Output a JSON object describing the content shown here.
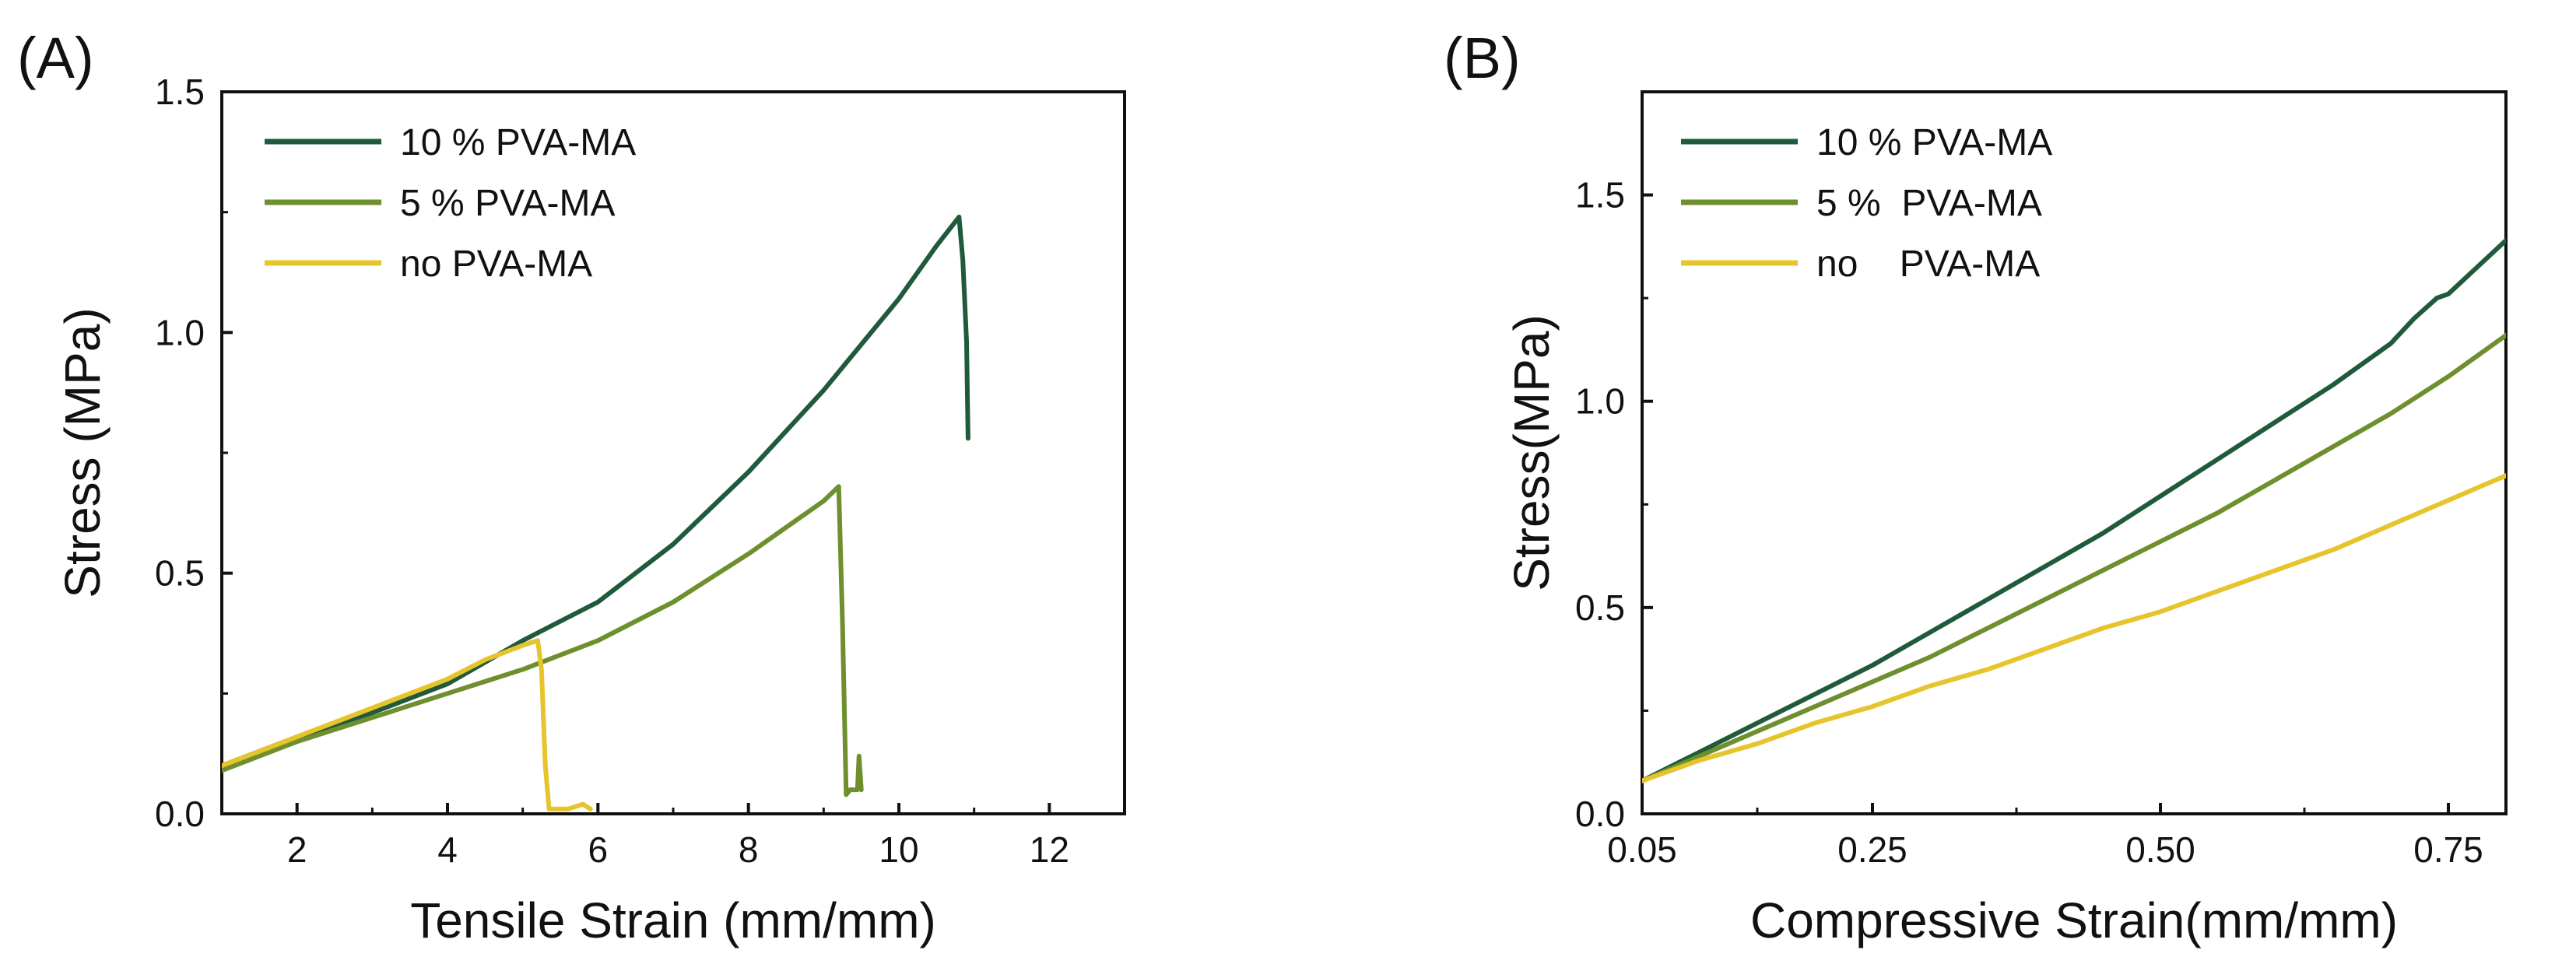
{
  "chart_data": [
    {
      "panel": "(A)",
      "type": "line",
      "xlabel": "Tensile Strain (mm/mm)",
      "ylabel": "Stress (MPa)",
      "xlim": [
        1,
        13
      ],
      "ylim": [
        0,
        1.5
      ],
      "xticks": [
        2,
        4,
        6,
        8,
        10,
        12
      ],
      "yticks": [
        0.0,
        0.5,
        1.0,
        1.5
      ],
      "xtick_labels": [
        "2",
        "4",
        "6",
        "8",
        "10",
        "12"
      ],
      "ytick_labels": [
        "0.0",
        "0.5",
        "1.0",
        "1.5"
      ],
      "legend_position": "top-left",
      "series": [
        {
          "name": "10 % PVA-MA",
          "color": "#1f5a3a",
          "x": [
            1.0,
            2.0,
            3.0,
            4.0,
            5.0,
            5.5,
            6.0,
            7.0,
            8.0,
            9.0,
            10.0,
            10.5,
            10.8,
            10.85,
            10.9,
            10.92
          ],
          "y": [
            0.1,
            0.16,
            0.21,
            0.27,
            0.36,
            0.4,
            0.44,
            0.56,
            0.71,
            0.88,
            1.07,
            1.18,
            1.24,
            1.15,
            0.98,
            0.78
          ]
        },
        {
          "name": "5 % PVA-MA",
          "color": "#6e8f2e",
          "x": [
            1.0,
            2.0,
            3.0,
            4.0,
            5.0,
            6.0,
            7.0,
            8.0,
            9.0,
            9.2,
            9.25,
            9.3,
            9.35,
            9.45,
            9.47,
            9.5
          ],
          "y": [
            0.09,
            0.15,
            0.2,
            0.25,
            0.3,
            0.36,
            0.44,
            0.54,
            0.65,
            0.68,
            0.4,
            0.04,
            0.05,
            0.05,
            0.12,
            0.05
          ]
        },
        {
          "name": "no PVA-MA",
          "color": "#e6c42c",
          "x": [
            1.0,
            2.0,
            3.0,
            4.0,
            4.5,
            5.0,
            5.2,
            5.25,
            5.3,
            5.35,
            5.6,
            5.8,
            5.9
          ],
          "y": [
            0.1,
            0.16,
            0.22,
            0.28,
            0.32,
            0.35,
            0.36,
            0.3,
            0.1,
            0.01,
            0.01,
            0.02,
            0.01
          ]
        }
      ]
    },
    {
      "panel": "(B)",
      "type": "line",
      "xlabel": "Compressive Strain(mm/mm)",
      "ylabel": "Stress(MPa)",
      "xlim": [
        0.05,
        0.8
      ],
      "ylim": [
        0,
        1.75
      ],
      "xticks": [
        0.05,
        0.25,
        0.5,
        0.75
      ],
      "yticks": [
        0.0,
        0.5,
        1.0,
        1.5
      ],
      "xtick_labels": [
        "0.05",
        "0.25",
        "0.50",
        "0.75"
      ],
      "ytick_labels": [
        "0.0",
        "0.5",
        "1.0",
        "1.5"
      ],
      "legend_position": "top-left",
      "series": [
        {
          "name": "10 % PVA-MA",
          "color": "#1f5a3a",
          "x": [
            0.05,
            0.1,
            0.15,
            0.2,
            0.25,
            0.3,
            0.35,
            0.4,
            0.45,
            0.5,
            0.55,
            0.6,
            0.65,
            0.7,
            0.72,
            0.74,
            0.75,
            0.8
          ],
          "y": [
            0.08,
            0.15,
            0.22,
            0.29,
            0.36,
            0.44,
            0.52,
            0.6,
            0.68,
            0.77,
            0.86,
            0.95,
            1.04,
            1.14,
            1.2,
            1.25,
            1.26,
            1.39
          ]
        },
        {
          "name": "5 %  PVA-MA",
          "color": "#6e8f2e",
          "x": [
            0.05,
            0.1,
            0.15,
            0.2,
            0.25,
            0.3,
            0.35,
            0.4,
            0.45,
            0.5,
            0.55,
            0.6,
            0.65,
            0.7,
            0.75,
            0.8
          ],
          "y": [
            0.08,
            0.14,
            0.2,
            0.26,
            0.32,
            0.38,
            0.45,
            0.52,
            0.59,
            0.66,
            0.73,
            0.81,
            0.89,
            0.97,
            1.06,
            1.16
          ]
        },
        {
          "name": "no    PVA-MA",
          "color": "#e6c42c",
          "x": [
            0.05,
            0.1,
            0.15,
            0.2,
            0.25,
            0.3,
            0.35,
            0.4,
            0.45,
            0.5,
            0.55,
            0.6,
            0.65,
            0.7,
            0.75,
            0.8
          ],
          "y": [
            0.08,
            0.13,
            0.17,
            0.22,
            0.26,
            0.31,
            0.35,
            0.4,
            0.45,
            0.49,
            0.54,
            0.59,
            0.64,
            0.7,
            0.76,
            0.82
          ]
        }
      ]
    }
  ]
}
